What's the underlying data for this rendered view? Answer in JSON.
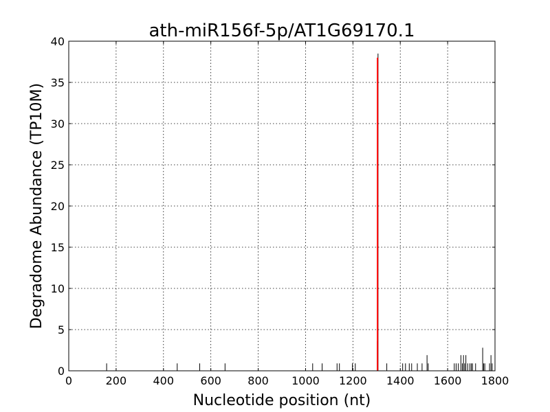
{
  "chart_data": {
    "type": "bar",
    "title": "ath-miR156f-5p/AT1G69170.1",
    "xlabel": "Nucleotide position (nt)",
    "ylabel": "Degradome Abundance (TP10M)",
    "xlim": [
      0,
      1800
    ],
    "ylim": [
      0,
      40
    ],
    "xticks": [
      0,
      200,
      400,
      600,
      800,
      1000,
      1200,
      1400,
      1600,
      1800
    ],
    "yticks": [
      0,
      5,
      10,
      15,
      20,
      25,
      30,
      35,
      40
    ],
    "grid": true,
    "series": [
      {
        "color": "#000000",
        "points": [
          {
            "x": 160,
            "y": 0.9
          },
          {
            "x": 458,
            "y": 0.9
          },
          {
            "x": 553,
            "y": 0.9
          },
          {
            "x": 660,
            "y": 0.9
          },
          {
            "x": 1030,
            "y": 0.9
          },
          {
            "x": 1070,
            "y": 0.9
          },
          {
            "x": 1133,
            "y": 0.9
          },
          {
            "x": 1143,
            "y": 0.9
          },
          {
            "x": 1198,
            "y": 0.9
          },
          {
            "x": 1210,
            "y": 0.9
          },
          {
            "x": 1303,
            "y": 3.6
          },
          {
            "x": 1306,
            "y": 38.5
          },
          {
            "x": 1343,
            "y": 0.9
          },
          {
            "x": 1410,
            "y": 0.9
          },
          {
            "x": 1422,
            "y": 0.9
          },
          {
            "x": 1438,
            "y": 0.9
          },
          {
            "x": 1448,
            "y": 0.9
          },
          {
            "x": 1472,
            "y": 0.9
          },
          {
            "x": 1492,
            "y": 0.9
          },
          {
            "x": 1513,
            "y": 1.9
          },
          {
            "x": 1518,
            "y": 0.9
          },
          {
            "x": 1628,
            "y": 0.9
          },
          {
            "x": 1636,
            "y": 0.9
          },
          {
            "x": 1645,
            "y": 0.9
          },
          {
            "x": 1656,
            "y": 1.9
          },
          {
            "x": 1662,
            "y": 0.9
          },
          {
            "x": 1667,
            "y": 1.9
          },
          {
            "x": 1672,
            "y": 0.9
          },
          {
            "x": 1677,
            "y": 1.9
          },
          {
            "x": 1685,
            "y": 0.9
          },
          {
            "x": 1694,
            "y": 0.9
          },
          {
            "x": 1700,
            "y": 0.9
          },
          {
            "x": 1705,
            "y": 0.9
          },
          {
            "x": 1718,
            "y": 0.9
          },
          {
            "x": 1748,
            "y": 2.8
          },
          {
            "x": 1752,
            "y": 0.9
          },
          {
            "x": 1757,
            "y": 0.9
          },
          {
            "x": 1777,
            "y": 0.9
          },
          {
            "x": 1783,
            "y": 1.9
          },
          {
            "x": 1788,
            "y": 0.9
          }
        ]
      },
      {
        "color": "#ff0000",
        "points": [
          {
            "x": 1304,
            "y": 38.0
          }
        ]
      }
    ]
  }
}
